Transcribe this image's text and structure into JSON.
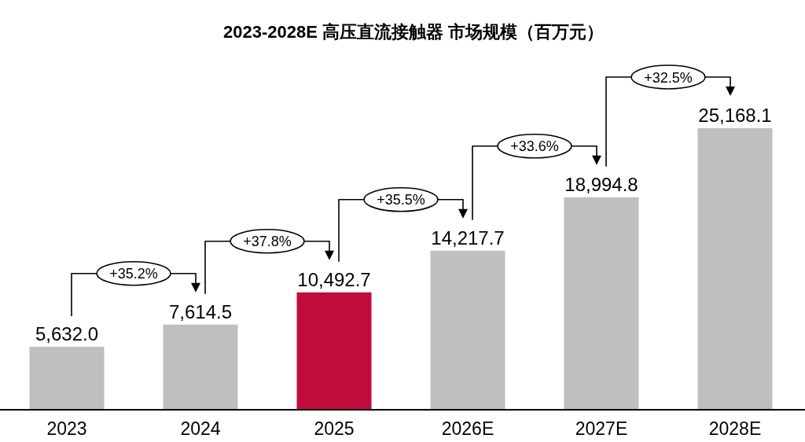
{
  "chart_data": {
    "type": "bar",
    "title": "2023-2028E 高压直流接触器 市场规模（百万元）",
    "categories": [
      "2023",
      "2024",
      "2025",
      "2026E",
      "2027E",
      "2028E"
    ],
    "values": [
      5632.0,
      7614.5,
      10492.7,
      14217.7,
      18994.8,
      25168.1
    ],
    "colors": [
      "#bfbfbf",
      "#bfbfbf",
      "#c00c3c",
      "#bfbfbf",
      "#bfbfbf",
      "#bfbfbf"
    ],
    "value_labels": [
      "5,632.0",
      "7,614.5",
      "10,492.7",
      "14,217.7",
      "18,994.8",
      "25,168.1"
    ],
    "annotations": [
      "+35.2%",
      "+37.8%",
      "+35.5%",
      "+33.6%",
      "+32.5%"
    ]
  }
}
